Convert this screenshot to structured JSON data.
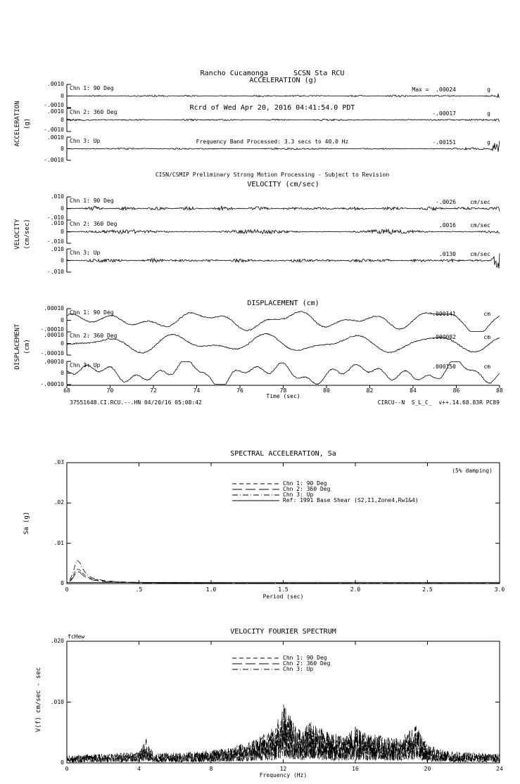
{
  "header": {
    "line1": "Rancho Cucamonga      SCSN Sta RCU",
    "line2": "Rcrd of Wed Apr 20, 2016 04:41:54.0 PDT",
    "line3": "Frequency Band Processed: 3.3 secs to 40.0 Hz",
    "line4": "CISN/CSMIP Preliminary Strong Motion Processing - Subject to Revision"
  },
  "footer": {
    "record_id": "37551648.CI.RCU.--.HN 04/20/16 05:08:42",
    "processing_code": "CIRCU--N  S_L_C_  v++.14.68.83R PC89"
  },
  "chart_data": [
    {
      "id": "acceleration",
      "type": "line",
      "title": "ACCELERATION (g)",
      "side_label": "ACCELERATION",
      "side_label_units": "(g)",
      "x_range_sec": [
        68,
        88
      ],
      "ylim": [
        -0.001,
        0.001
      ],
      "ytick_labels": [
        ".0010",
        "0",
        "-.0010"
      ],
      "trace_kind": "noise",
      "noise_base": 0.08,
      "channels": [
        {
          "label": "Chn 1: 90 Deg",
          "peak_text": "Max =  .00024",
          "unit": "g",
          "peak_value": 0.00024,
          "seed": 11
        },
        {
          "label": "Chn 2: 360 Deg",
          "peak_text": "-.00017",
          "unit": "g",
          "peak_value": -0.00017,
          "seed": 23
        },
        {
          "label": "Chn 3: Up",
          "peak_text": "-.00151",
          "unit": "g",
          "peak_value": -0.00151,
          "seed": 37
        }
      ]
    },
    {
      "id": "velocity",
      "type": "line",
      "title": "VELOCITY (cm/sec)",
      "side_label": "VELOCITY",
      "side_label_units": "(cm/sec)",
      "x_range_sec": [
        68,
        88
      ],
      "ylim": [
        -0.01,
        0.01
      ],
      "ytick_labels": [
        ".010",
        "0",
        "-.010"
      ],
      "trace_kind": "noise",
      "noise_base": 0.16,
      "channels": [
        {
          "label": "Chn 1: 90 Deg",
          "peak_text": "-.0026",
          "unit": "cm/sec",
          "peak_value": -0.0026,
          "seed": 41
        },
        {
          "label": "Chn 2: 360 Deg",
          "peak_text": ".0016",
          "unit": "cm/sec",
          "peak_value": 0.0016,
          "seed": 53
        },
        {
          "label": "Chn 3: Up",
          "peak_text": ".0130",
          "unit": "cm/sec",
          "peak_value": 0.013,
          "seed": 67
        }
      ]
    },
    {
      "id": "displacement",
      "type": "line",
      "title": "DISPLACEMENT (cm)",
      "side_label": "DISPLACEMENT",
      "side_label_units": "(cm)",
      "x_range_sec": [
        68,
        88
      ],
      "ylim": [
        -0.0001,
        0.0001
      ],
      "ytick_labels": [
        ".00010",
        "0",
        "-.00010"
      ],
      "trace_kind": "lowfreq",
      "xaxis": {
        "ticks": [
          68,
          70,
          72,
          74,
          76,
          78,
          80,
          82,
          84,
          86,
          88
        ],
        "label": "Time (sec)"
      },
      "channels": [
        {
          "label": "Chn 1: 90 Deg",
          "peak_text": "-.000141",
          "unit": "cm",
          "peak_value": -0.000141,
          "seed": 71
        },
        {
          "label": "Chn 2: 360 Deg",
          "peak_text": ".000082",
          "unit": "cm",
          "peak_value": 8.2e-05,
          "seed": 83
        },
        {
          "label": "Chn 3: Up",
          "peak_text": ".000150",
          "unit": "cm",
          "peak_value": 0.00015,
          "seed": 97
        }
      ]
    },
    {
      "id": "spectral-acceleration",
      "type": "line",
      "title": "SPECTRAL ACCELERATION, Sa",
      "annotation": "(5% damping)",
      "ylabel": "Sa (g)",
      "xlabel": "Period (sec)",
      "xlim": [
        0,
        3
      ],
      "ylim": [
        0,
        0.03
      ],
      "xticks": [
        0,
        0.5,
        1.0,
        1.5,
        2.0,
        2.5,
        3.0
      ],
      "xtick_labels": [
        "0",
        ".5",
        "1.0",
        "1.5",
        "2.0",
        "2.5",
        "3.0"
      ],
      "yticks": [
        0,
        0.01,
        0.02,
        0.03
      ],
      "ytick_labels": [
        "0",
        ".01",
        ".02",
        ".03"
      ],
      "legend_position": "top-center",
      "series": [
        {
          "name": "Chn 1: 90 Deg",
          "dash": "6,4",
          "x": [
            0.02,
            0.04,
            0.055,
            0.07,
            0.09,
            0.11,
            0.14,
            0.18,
            0.25,
            0.35,
            0.5,
            0.75,
            1.0,
            1.5,
            2.0,
            2.5,
            3.0
          ],
          "y": [
            0.0006,
            0.0016,
            0.0028,
            0.0036,
            0.0034,
            0.0026,
            0.0017,
            0.0011,
            0.0007,
            0.0004,
            0.00025,
            0.00018,
            0.00013,
            0.0001,
            8e-05,
            7e-05,
            6e-05
          ]
        },
        {
          "name": "Chn 2: 360 Deg",
          "dash": "14,5",
          "x": [
            0.02,
            0.04,
            0.055,
            0.07,
            0.09,
            0.11,
            0.14,
            0.18,
            0.25,
            0.35,
            0.5,
            0.75,
            1.0,
            1.5,
            2.0,
            2.5,
            3.0
          ],
          "y": [
            0.0005,
            0.0013,
            0.0022,
            0.003,
            0.0028,
            0.0021,
            0.0014,
            0.0009,
            0.0005,
            0.0003,
            0.0002,
            0.00014,
            0.00011,
            8e-05,
            7e-05,
            6e-05,
            5e-05
          ]
        },
        {
          "name": "Chn 3: Up",
          "dash": "8,3,1,3",
          "x": [
            0.02,
            0.04,
            0.055,
            0.07,
            0.09,
            0.11,
            0.14,
            0.18,
            0.25,
            0.35,
            0.5,
            0.75,
            1.0,
            1.5,
            2.0,
            2.5,
            3.0
          ],
          "y": [
            0.0009,
            0.0024,
            0.0043,
            0.0058,
            0.0052,
            0.0037,
            0.0022,
            0.0013,
            0.0008,
            0.00045,
            0.00028,
            0.00018,
            0.00013,
            9e-05,
            7e-05,
            6e-05,
            5e-05
          ]
        },
        {
          "name": "Ref: 1991 Base Shear (S2,I1,Zone4,Rw1&4)",
          "dash": "",
          "x": [
            0,
            3
          ],
          "y": [
            0.0003,
            0.0003
          ]
        }
      ]
    },
    {
      "id": "velocity-fourier-spectrum",
      "type": "line",
      "title": "VELOCITY FOURIER SPECTRUM",
      "corner_text": "fcHew",
      "ylabel": "V(f)      cm/sec - sec",
      "xlabel": "Frequency (Hz)",
      "xlim": [
        0,
        24
      ],
      "ylim": [
        0,
        0.02
      ],
      "xticks": [
        0,
        4,
        8,
        12,
        16,
        20,
        24
      ],
      "xtick_labels": [
        "0",
        "4",
        "8",
        "12",
        "16",
        "20",
        "24"
      ],
      "yticks": [
        0,
        0.01,
        0.02
      ],
      "ytick_labels": [
        "0",
        ".010",
        ".020"
      ],
      "legend_position": "top-center",
      "series": [
        {
          "name": "Chn 1: 90 Deg",
          "dash": "6,4",
          "seed": 101
        },
        {
          "name": "Chn 2: 360 Deg",
          "dash": "14,5",
          "seed": 202
        },
        {
          "name": "Chn 3: Up",
          "dash": "8,3,1,3",
          "seed": 303
        }
      ],
      "envelope": [
        [
          0,
          0.0012
        ],
        [
          2,
          0.0015
        ],
        [
          4,
          0.0018
        ],
        [
          4.4,
          0.004
        ],
        [
          4.8,
          0.0016
        ],
        [
          7,
          0.0018
        ],
        [
          9,
          0.0025
        ],
        [
          10.5,
          0.004
        ],
        [
          11.5,
          0.006
        ],
        [
          12,
          0.01
        ],
        [
          12.5,
          0.007
        ],
        [
          13,
          0.0055
        ],
        [
          13.5,
          0.007
        ],
        [
          14.5,
          0.005
        ],
        [
          15.5,
          0.0045
        ],
        [
          16,
          0.006
        ],
        [
          16.5,
          0.005
        ],
        [
          17.5,
          0.0045
        ],
        [
          18.5,
          0.004
        ],
        [
          19.4,
          0.0065
        ],
        [
          20,
          0.003
        ],
        [
          21,
          0.002
        ],
        [
          22,
          0.0018
        ],
        [
          24,
          0.0015
        ]
      ]
    }
  ]
}
